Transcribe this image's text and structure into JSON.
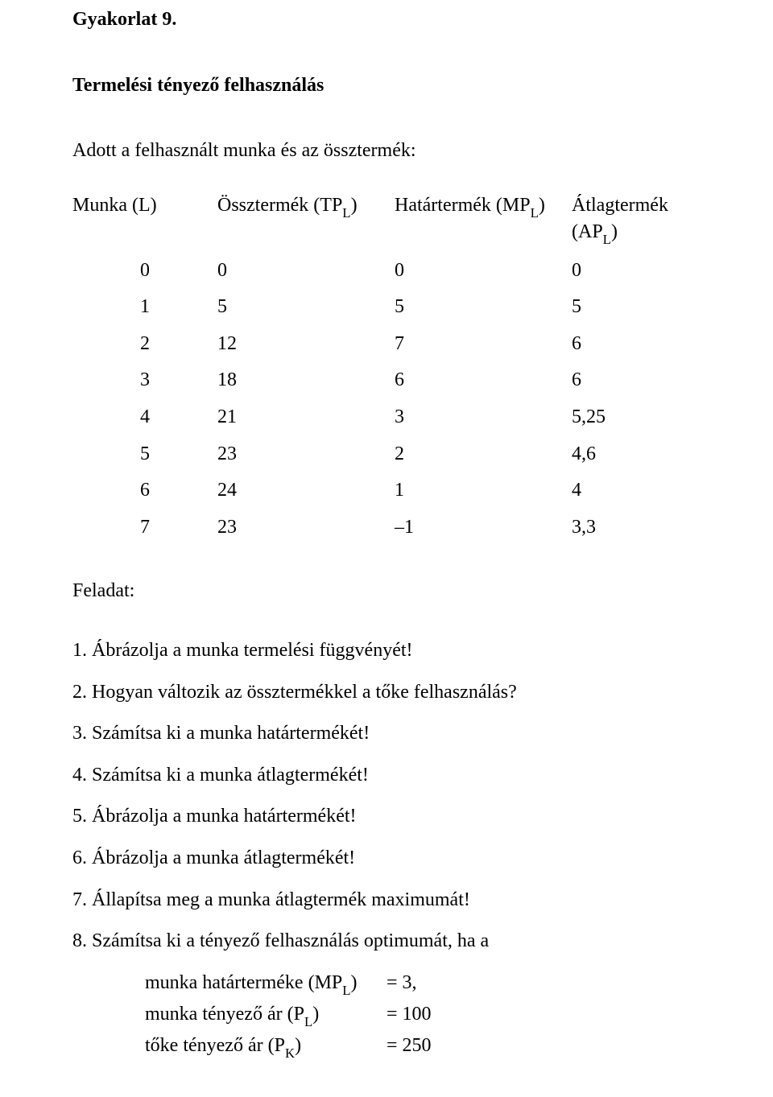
{
  "heading1": "Gyakorlat 9.",
  "heading2": "Termelési tényező felhasználás",
  "intro": "Adott a felhasznált munka és az össztermék:",
  "table": {
    "headers": {
      "l": {
        "pre": "Munka (L)"
      },
      "tp": {
        "pre": "Össztermék (TP",
        "sub": "L",
        "post": ")"
      },
      "mp": {
        "pre": "Határtermék (MP",
        "sub": "L",
        "post": ")"
      },
      "ap": {
        "pre": "Átlagtermék (AP",
        "sub": "L",
        "post": ")"
      }
    },
    "rows": [
      {
        "l": "0",
        "tp": "0",
        "mp": "0",
        "ap": "0"
      },
      {
        "l": "1",
        "tp": "5",
        "mp": "5",
        "ap": "5"
      },
      {
        "l": "2",
        "tp": "12",
        "mp": "7",
        "ap": "6"
      },
      {
        "l": "3",
        "tp": "18",
        "mp": "6",
        "ap": "6"
      },
      {
        "l": "4",
        "tp": "21",
        "mp": "3",
        "ap": "5,25"
      },
      {
        "l": "5",
        "tp": "23",
        "mp": "2",
        "ap": "4,6"
      },
      {
        "l": "6",
        "tp": "24",
        "mp": "1",
        "ap": "4"
      },
      {
        "l": "7",
        "tp": "23",
        "mp": "–1",
        "ap": "3,3"
      }
    ]
  },
  "feladat_label": "Feladat:",
  "tasks": {
    "t1": "1. Ábrázolja a munka termelési függvényét!",
    "t2": "2. Hogyan változik az össztermékkel a tőke felhasználás?",
    "t3": "3. Számítsa ki a munka határtermékét!",
    "t4": "4. Számítsa ki a munka átlagtermékét!",
    "t5": "5. Ábrázolja a munka határtermékét!",
    "t6": "6. Ábrázolja a munka átlagtermékét!",
    "t7": "7. Állapítsa meg a munka átlagtermék maximumát!",
    "t8": "8. Számítsa ki a tényező felhasználás optimumát, ha a"
  },
  "calc": {
    "line1": {
      "pre": "munka határterméke (MP",
      "sub": "L",
      "post": ")",
      "val": "= 3,"
    },
    "line2": {
      "pre": "munka tényező ár (P",
      "sub": "L",
      "post": ")",
      "val": "= 100"
    },
    "line3": {
      "pre": "tőke tényező ár (P",
      "sub": "K",
      "post": ")",
      "val": "= 250"
    }
  }
}
